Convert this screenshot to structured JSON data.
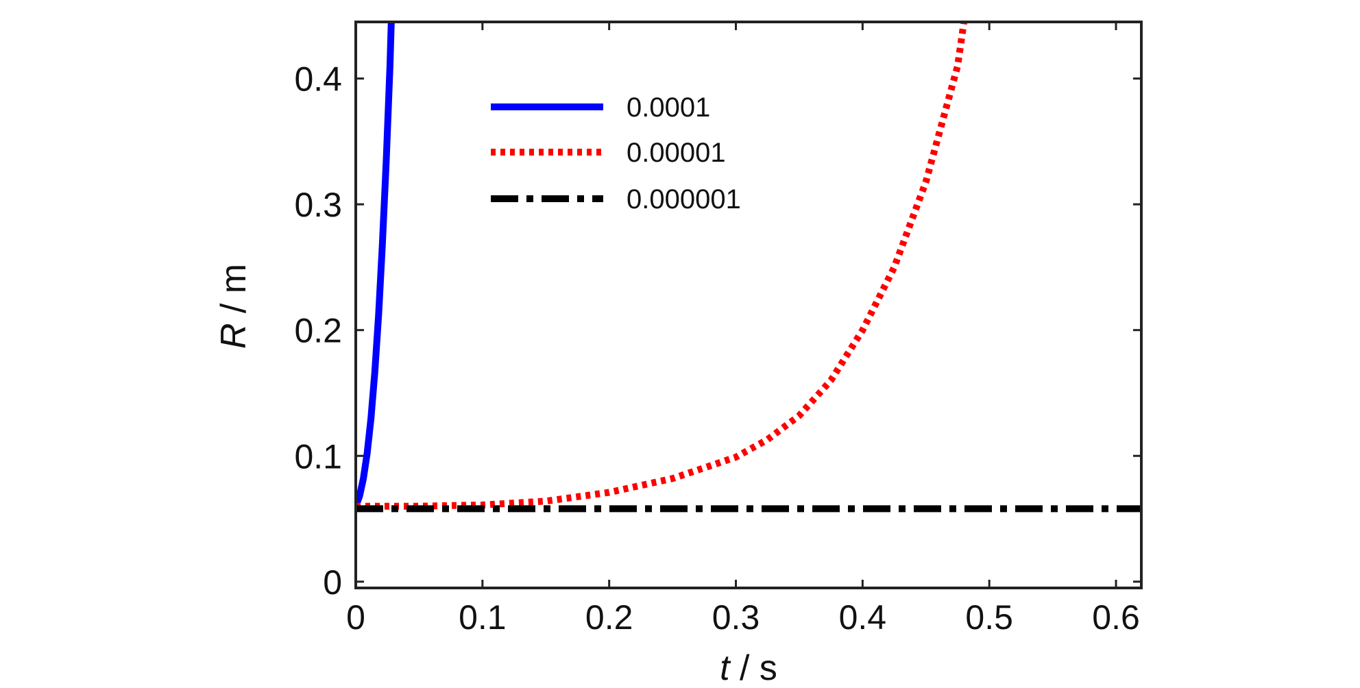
{
  "chart_data": {
    "type": "line",
    "title": "",
    "xlabel": {
      "symbol": "t",
      "unit": " / s"
    },
    "ylabel": {
      "symbol": "R",
      "unit": " / m"
    },
    "xlim": [
      0,
      0.62
    ],
    "ylim": [
      -0.005,
      0.445
    ],
    "xticks": [
      0,
      0.1,
      0.2,
      0.3,
      0.4,
      0.5,
      0.6
    ],
    "xtick_labels": [
      "0",
      "0.1",
      "0.2",
      "0.3",
      "0.4",
      "0.5",
      "0.6"
    ],
    "yticks": [
      0,
      0.1,
      0.2,
      0.3,
      0.4
    ],
    "ytick_labels": [
      "0",
      "0.1",
      "0.2",
      "0.3",
      "0.4"
    ],
    "grid": false,
    "legend_position": "top-center",
    "series": [
      {
        "name": "0.0001",
        "color": "#0000ff",
        "style": "solid",
        "x": [
          0,
          0.003,
          0.006,
          0.009,
          0.012,
          0.015,
          0.018,
          0.021,
          0.024,
          0.027,
          0.028
        ],
        "y": [
          0.06,
          0.068,
          0.082,
          0.102,
          0.13,
          0.166,
          0.212,
          0.268,
          0.334,
          0.41,
          0.445
        ]
      },
      {
        "name": "0.00001",
        "color": "#ff0000",
        "style": "dotted",
        "x": [
          0,
          0.05,
          0.1,
          0.15,
          0.2,
          0.25,
          0.3,
          0.325,
          0.35,
          0.375,
          0.4,
          0.425,
          0.45,
          0.475,
          0.48
        ],
        "y": [
          0.06,
          0.06,
          0.061,
          0.064,
          0.071,
          0.082,
          0.099,
          0.113,
          0.132,
          0.16,
          0.2,
          0.25,
          0.318,
          0.41,
          0.445
        ]
      },
      {
        "name": "0.000001",
        "color": "#000000",
        "style": "dashdot",
        "x": [
          0,
          0.62
        ],
        "y": [
          0.058,
          0.058
        ]
      }
    ]
  }
}
